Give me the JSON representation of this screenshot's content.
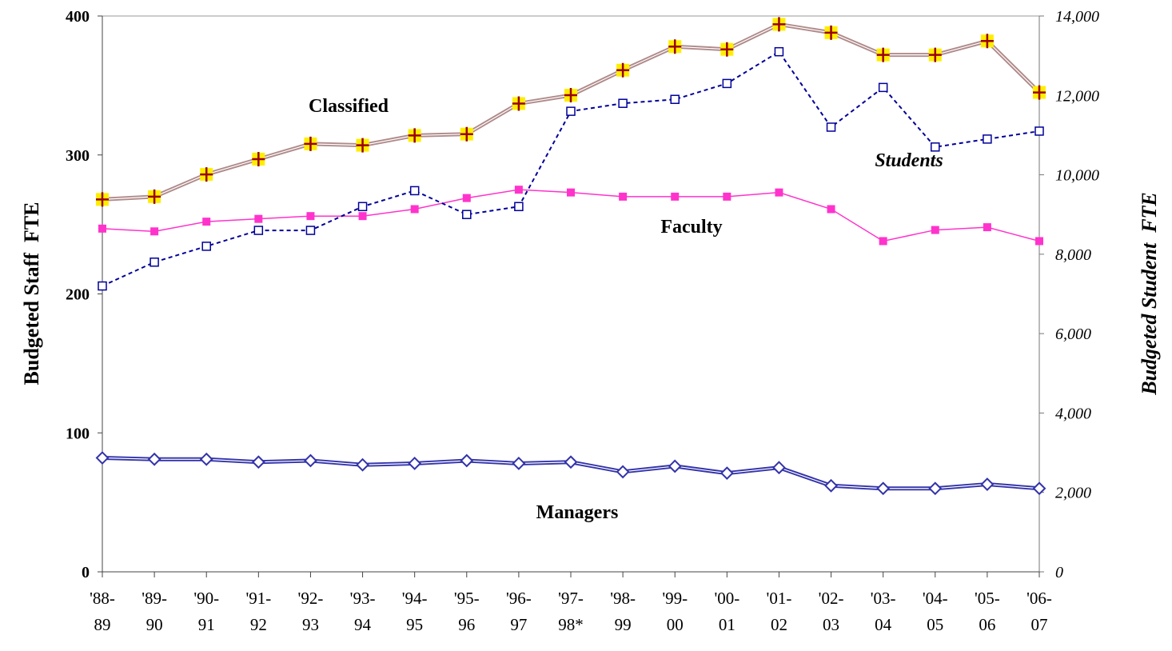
{
  "chart_data": {
    "type": "line",
    "categories": [
      "'88-\n89",
      "'89-\n90",
      "'90-\n91",
      "'91-\n92",
      "'92-\n93",
      "'93-\n94",
      "'94-\n95",
      "'95-\n96",
      "'96-\n97",
      "'97-\n98*",
      "'98-\n99",
      "'99-\n00",
      "'00-\n01",
      "'01-\n02",
      "'02-\n03",
      "'03-\n04",
      "'04-\n05",
      "'05-\n06",
      "'06-\n07"
    ],
    "ylabel": "Budgeted Staff  FTE",
    "y2label": "Budgeted Student  FTE",
    "ylim": [
      0,
      400
    ],
    "yticks": [
      0,
      100,
      200,
      300,
      400
    ],
    "y2lim": [
      0,
      14000
    ],
    "y2ticks": [
      0,
      {
        "value": 2000,
        "label": "2,000"
      },
      {
        "value": 4000,
        "label": "4,000"
      },
      {
        "value": 6000,
        "label": "6,000"
      },
      {
        "value": 8000,
        "label": "8,000"
      },
      {
        "value": 10000,
        "label": "10,000"
      },
      {
        "value": 12000,
        "label": "12,000"
      },
      {
        "value": 14000,
        "label": "14,000"
      }
    ],
    "annotations": [
      "Classified",
      "Students",
      "Faculty",
      "Managers"
    ],
    "series": [
      {
        "name": "Classified",
        "color": "#b08a8a",
        "values": [
          268,
          270,
          286,
          297,
          308,
          307,
          314,
          315,
          337,
          343,
          361,
          378,
          376,
          394,
          388,
          372,
          372,
          382,
          345
        ]
      },
      {
        "name": "Faculty",
        "color": "#ff33cc",
        "values": [
          247,
          245,
          252,
          254,
          256,
          256,
          261,
          269,
          275,
          273,
          270,
          270,
          270,
          273,
          261,
          238,
          246,
          248,
          238
        ]
      },
      {
        "name": "Managers",
        "color": "#3333aa",
        "values": [
          82,
          81,
          81,
          79,
          80,
          77,
          78,
          80,
          78,
          79,
          72,
          76,
          71,
          75,
          62,
          60,
          60,
          63,
          60
        ]
      },
      {
        "name": "Students",
        "color": "#000099",
        "axis": "y2",
        "dashed": true,
        "values": [
          7200,
          7800,
          8200,
          8600,
          8600,
          9200,
          9600,
          9000,
          9200,
          11600,
          11800,
          11900,
          12300,
          13100,
          11200,
          12200,
          10700,
          10900,
          11100
        ]
      }
    ]
  }
}
